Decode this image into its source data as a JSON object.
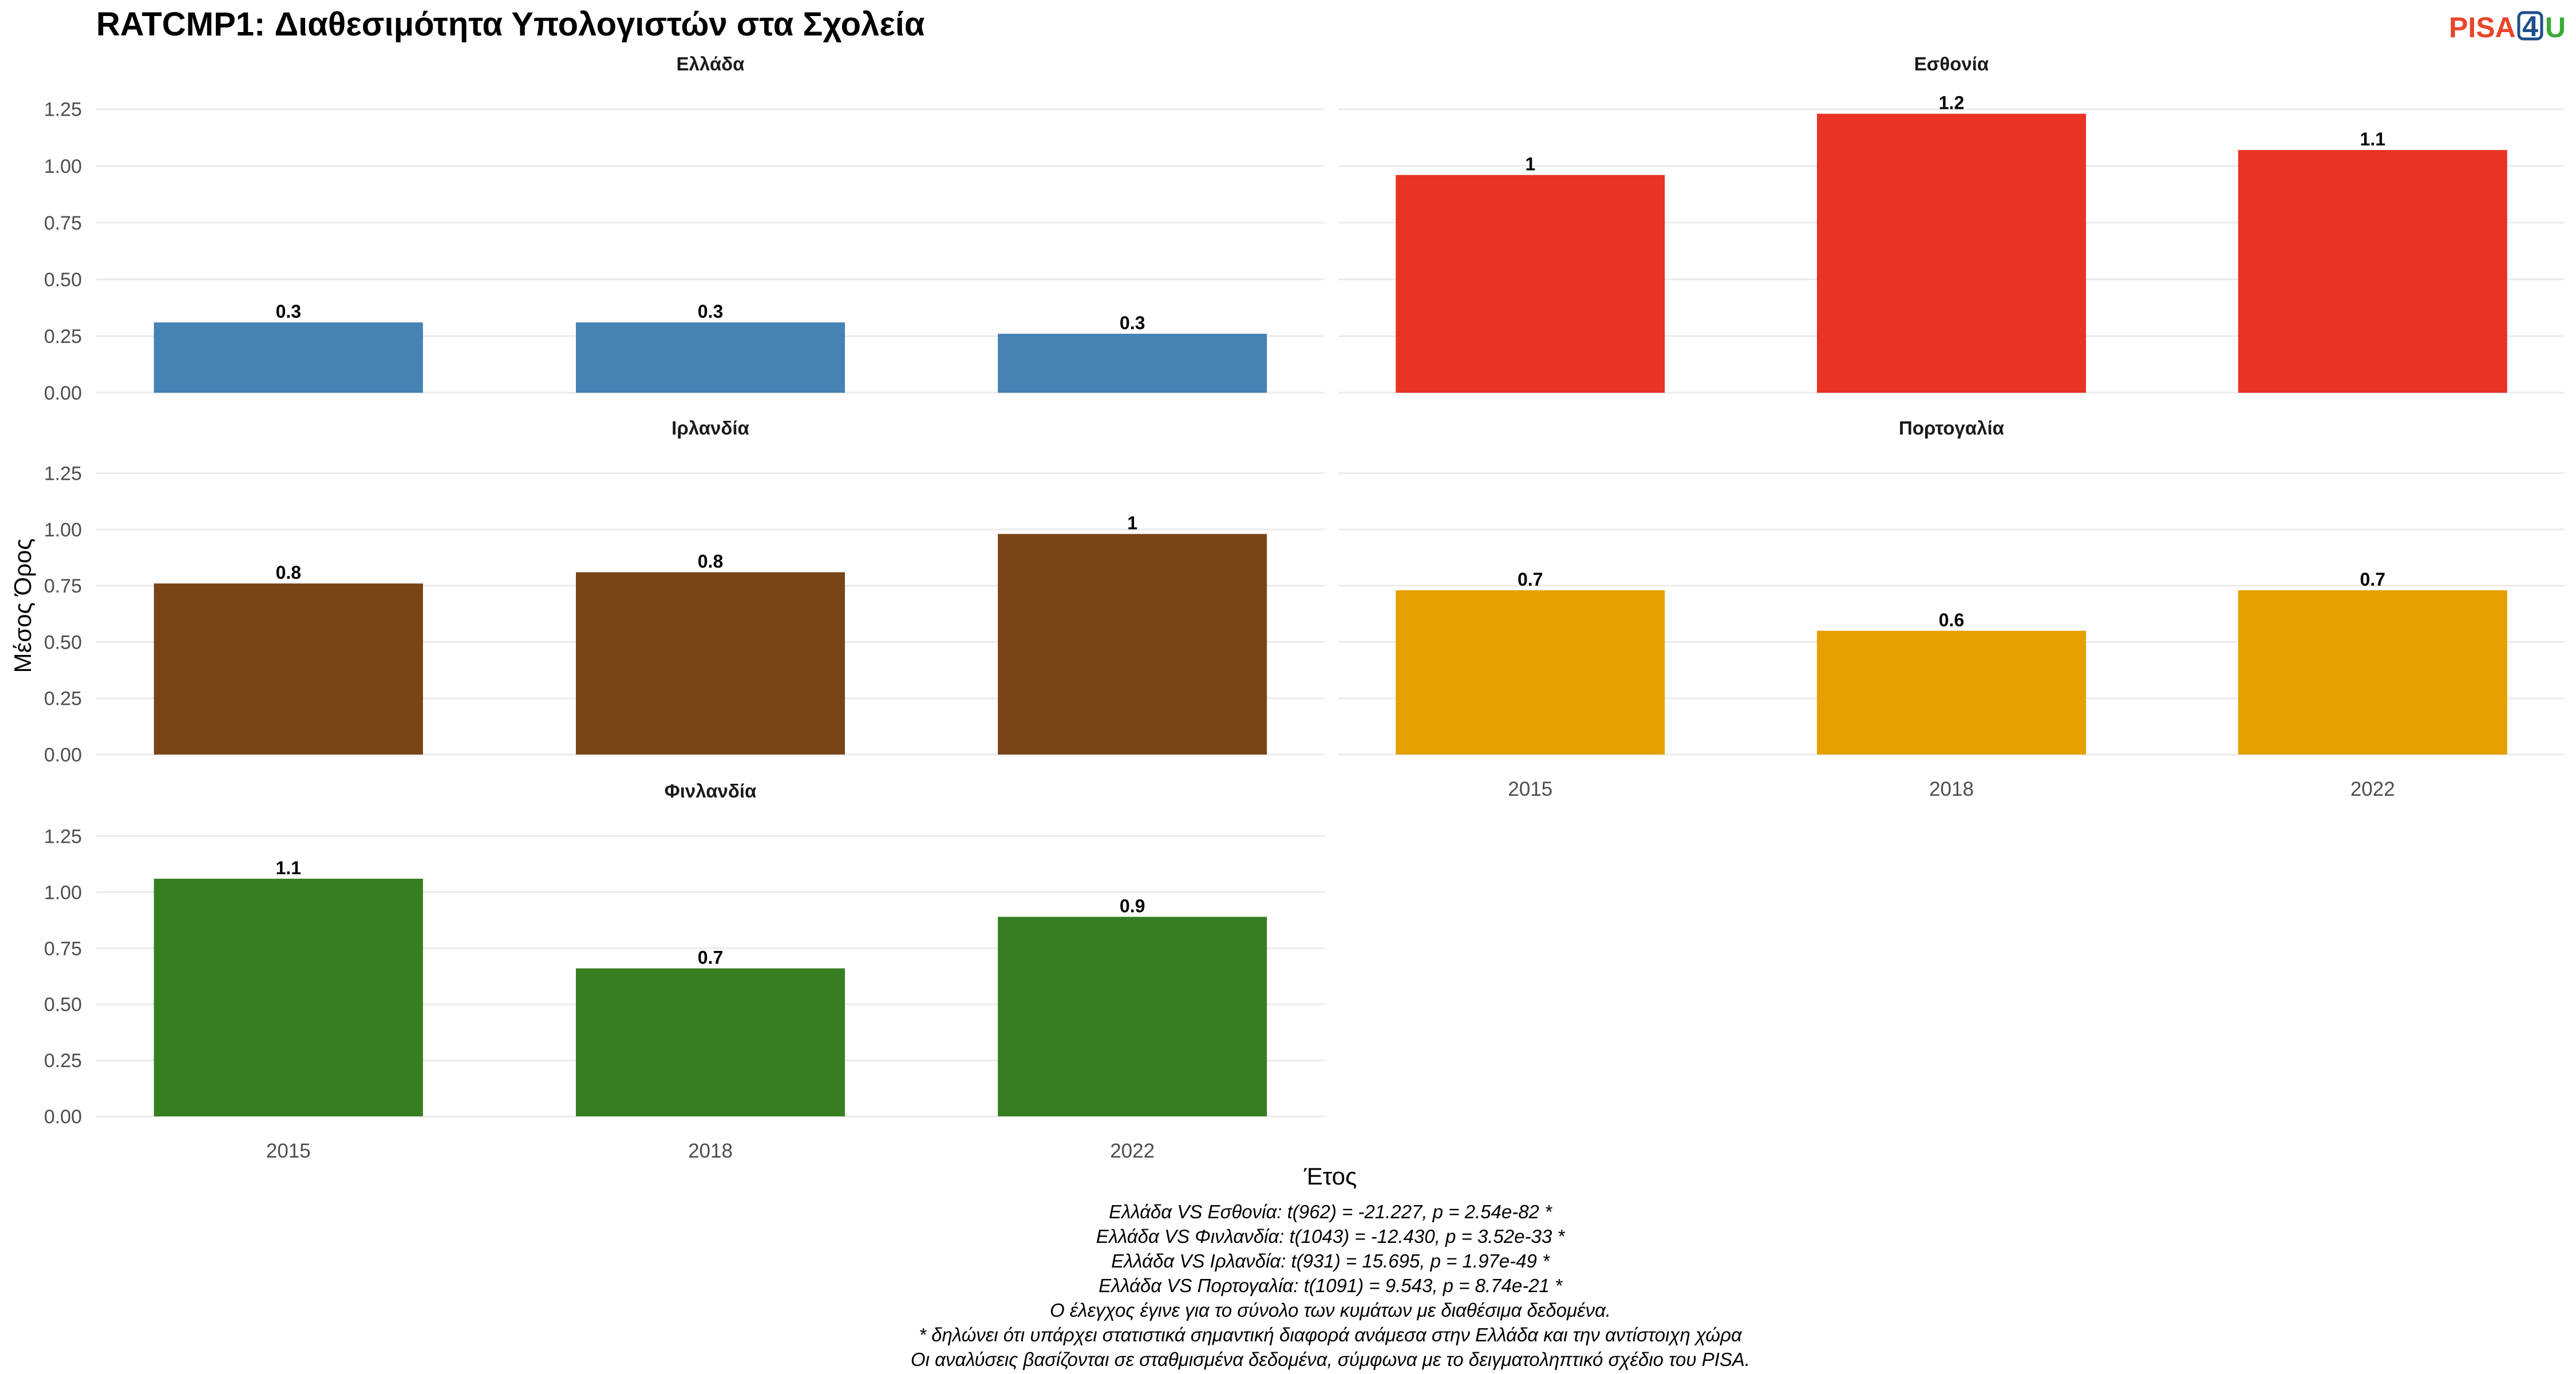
{
  "chart_data": {
    "type": "bar",
    "title": "RATCMP1: Διαθεσιμότητα Υπολογιστών στα Σχολεία",
    "xlabel": "Έτος",
    "ylabel": "Μέσος Όρος",
    "ylim": [
      0,
      1.32
    ],
    "yticks": [
      "0.00",
      "0.25",
      "0.50",
      "0.75",
      "1.00",
      "1.25"
    ],
    "categories": [
      "2015",
      "2018",
      "2022"
    ],
    "grid": true,
    "legend": "none",
    "panels": [
      {
        "name": "Ελλάδα",
        "color": "#4682B4",
        "values": [
          0.31,
          0.31,
          0.26
        ],
        "labels": [
          "0.3",
          "0.3",
          "0.3"
        ]
      },
      {
        "name": "Εσθονία",
        "color": "#E93325",
        "values": [
          0.96,
          1.23,
          1.07
        ],
        "labels": [
          "1",
          "1.2",
          "1.1"
        ]
      },
      {
        "name": "Ιρλανδία",
        "color": "#794518",
        "values": [
          0.76,
          0.81,
          0.98
        ],
        "labels": [
          "0.8",
          "0.8",
          "1"
        ]
      },
      {
        "name": "Πορτογαλία",
        "color": "#E6A000",
        "values": [
          0.73,
          0.55,
          0.73
        ],
        "labels": [
          "0.7",
          "0.6",
          "0.7"
        ]
      },
      {
        "name": "Φινλανδία",
        "color": "#377E22",
        "values": [
          1.06,
          0.66,
          0.89
        ],
        "labels": [
          "1.1",
          "0.7",
          "0.9"
        ]
      }
    ],
    "notes": [
      "Ελλάδα VS Εσθονία: t(962) = -21.227, p = 2.54e-82 *",
      "Ελλάδα VS Φινλανδία: t(1043) = -12.430, p = 3.52e-33 *",
      "Ελλάδα VS Ιρλανδία: t(931) = 15.695, p = 1.97e-49 *",
      "Ελλάδα VS Πορτογαλία: t(1091) = 9.543, p = 8.74e-21 *",
      "Ο έλεγχος έγινε για το σύνολο των κυμάτων με διαθέσιμα δεδομένα.",
      "* δηλώνει ότι υπάρχει στατιστικά σημαντική διαφορά ανάμεσα στην Ελλάδα και την αντίστοιχη χώρα",
      "Οι αναλύσεις βασίζονται σε σταθμισμένα δεδομένα, σύμφωνα με το δειγματοληπτικό σχέδιο του PISA."
    ]
  },
  "logo": {
    "part1": "PISA",
    "part2": "4",
    "part3": "U",
    "color1": "#E8452C",
    "color2": "#1F4E8C",
    "color3": "#3AAA35"
  }
}
